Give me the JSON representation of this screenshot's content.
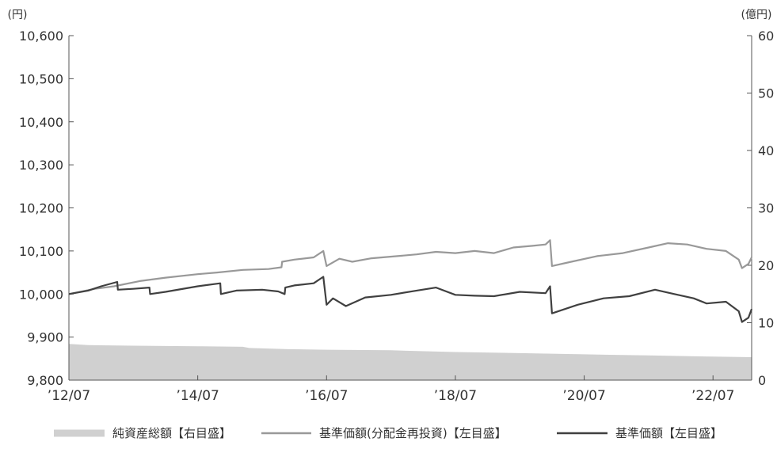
{
  "chart_data": {
    "type": "line",
    "left_unit": "(円)",
    "right_unit": "(億円)",
    "left_axis": {
      "range": [
        9800,
        10600
      ],
      "ticks": [
        {
          "value": 9800,
          "label": "9,800"
        },
        {
          "value": 9900,
          "label": "9,900"
        },
        {
          "value": 10000,
          "label": "10,000"
        },
        {
          "value": 10100,
          "label": "10,100"
        },
        {
          "value": 10200,
          "label": "10,200"
        },
        {
          "value": 10300,
          "label": "10,300"
        },
        {
          "value": 10400,
          "label": "10,400"
        },
        {
          "value": 10500,
          "label": "10,500"
        },
        {
          "value": 10600,
          "label": "10,600"
        }
      ]
    },
    "right_axis": {
      "range": [
        0,
        60
      ],
      "ticks": [
        {
          "value": 0,
          "label": "0"
        },
        {
          "value": 10,
          "label": "10"
        },
        {
          "value": 20,
          "label": "20"
        },
        {
          "value": 30,
          "label": "30"
        },
        {
          "value": 40,
          "label": "40"
        },
        {
          "value": 50,
          "label": "50"
        },
        {
          "value": 60,
          "label": "60"
        }
      ]
    },
    "x_axis": {
      "range": [
        2012.5,
        2023.1
      ],
      "ticks": [
        {
          "value": 2012.5,
          "label": "’12/07"
        },
        {
          "value": 2014.5,
          "label": "’14/07"
        },
        {
          "value": 2016.5,
          "label": "’16/07"
        },
        {
          "value": 2018.5,
          "label": "’18/07"
        },
        {
          "value": 2020.5,
          "label": "’20/07"
        },
        {
          "value": 2022.5,
          "label": "’22/07"
        }
      ]
    },
    "series": [
      {
        "name": "純資産総額【右目盛】",
        "type": "area",
        "axis": "right",
        "color": "#d0d0d0",
        "points": [
          [
            2012.5,
            6.3
          ],
          [
            2012.8,
            6.1
          ],
          [
            2013.5,
            6.0
          ],
          [
            2014.5,
            5.9
          ],
          [
            2015.2,
            5.8
          ],
          [
            2015.3,
            5.6
          ],
          [
            2015.9,
            5.4
          ],
          [
            2016.5,
            5.3
          ],
          [
            2017.5,
            5.2
          ],
          [
            2018.5,
            4.9
          ],
          [
            2019.5,
            4.7
          ],
          [
            2020.5,
            4.5
          ],
          [
            2021.5,
            4.3
          ],
          [
            2022.5,
            4.1
          ],
          [
            2023.1,
            4.0
          ]
        ]
      },
      {
        "name": "基準価額(分配金再投資)【左目盛】",
        "type": "line",
        "axis": "left",
        "color": "#999999",
        "points": [
          [
            2012.5,
            10000
          ],
          [
            2012.9,
            10012
          ],
          [
            2013.2,
            10018
          ],
          [
            2013.6,
            10030
          ],
          [
            2014.0,
            10038
          ],
          [
            2014.5,
            10046
          ],
          [
            2014.8,
            10050
          ],
          [
            2015.2,
            10056
          ],
          [
            2015.6,
            10058
          ],
          [
            2015.8,
            10062
          ],
          [
            2015.81,
            10075
          ],
          [
            2016.0,
            10080
          ],
          [
            2016.3,
            10085
          ],
          [
            2016.45,
            10100
          ],
          [
            2016.5,
            10065
          ],
          [
            2016.7,
            10082
          ],
          [
            2016.9,
            10075
          ],
          [
            2017.2,
            10083
          ],
          [
            2017.6,
            10088
          ],
          [
            2017.9,
            10092
          ],
          [
            2018.2,
            10098
          ],
          [
            2018.5,
            10095
          ],
          [
            2018.8,
            10100
          ],
          [
            2019.1,
            10095
          ],
          [
            2019.4,
            10108
          ],
          [
            2019.7,
            10112
          ],
          [
            2019.9,
            10115
          ],
          [
            2019.97,
            10125
          ],
          [
            2020.0,
            10065
          ],
          [
            2020.3,
            10075
          ],
          [
            2020.7,
            10088
          ],
          [
            2021.1,
            10095
          ],
          [
            2021.5,
            10108
          ],
          [
            2021.8,
            10118
          ],
          [
            2022.1,
            10115
          ],
          [
            2022.4,
            10105
          ],
          [
            2022.7,
            10100
          ],
          [
            2022.9,
            10080
          ],
          [
            2022.95,
            10060
          ],
          [
            2023.05,
            10070
          ],
          [
            2023.1,
            10085
          ]
        ]
      },
      {
        "name": "基準価額【左目盛】",
        "type": "line",
        "axis": "left",
        "color": "#404040",
        "points": [
          [
            2012.5,
            10000
          ],
          [
            2012.8,
            10008
          ],
          [
            2013.0,
            10018
          ],
          [
            2013.25,
            10028
          ],
          [
            2013.26,
            10010
          ],
          [
            2013.5,
            10012
          ],
          [
            2013.75,
            10015
          ],
          [
            2013.76,
            10000
          ],
          [
            2014.0,
            10005
          ],
          [
            2014.5,
            10018
          ],
          [
            2014.85,
            10025
          ],
          [
            2014.86,
            10000
          ],
          [
            2015.1,
            10008
          ],
          [
            2015.5,
            10010
          ],
          [
            2015.75,
            10006
          ],
          [
            2015.85,
            10000
          ],
          [
            2015.86,
            10015
          ],
          [
            2016.0,
            10020
          ],
          [
            2016.3,
            10025
          ],
          [
            2016.45,
            10040
          ],
          [
            2016.5,
            9975
          ],
          [
            2016.6,
            9990
          ],
          [
            2016.8,
            9972
          ],
          [
            2017.1,
            9992
          ],
          [
            2017.5,
            9998
          ],
          [
            2017.9,
            10008
          ],
          [
            2018.2,
            10015
          ],
          [
            2018.5,
            9998
          ],
          [
            2018.8,
            9996
          ],
          [
            2019.1,
            9995
          ],
          [
            2019.5,
            10005
          ],
          [
            2019.9,
            10002
          ],
          [
            2019.97,
            10018
          ],
          [
            2020.0,
            9955
          ],
          [
            2020.4,
            9975
          ],
          [
            2020.8,
            9990
          ],
          [
            2021.2,
            9995
          ],
          [
            2021.6,
            10010
          ],
          [
            2021.9,
            10000
          ],
          [
            2022.2,
            9990
          ],
          [
            2022.4,
            9978
          ],
          [
            2022.7,
            9982
          ],
          [
            2022.9,
            9960
          ],
          [
            2022.95,
            9935
          ],
          [
            2023.05,
            9945
          ],
          [
            2023.1,
            9965
          ]
        ]
      }
    ]
  }
}
